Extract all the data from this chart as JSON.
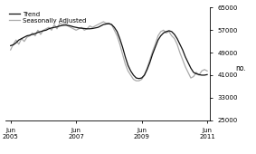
{
  "title": "",
  "ylabel": "no.",
  "ylim": [
    25000,
    65000
  ],
  "yticks": [
    25000,
    33000,
    41000,
    49000,
    57000,
    65000
  ],
  "xlim_start": 2005.25,
  "xlim_end": 2011.5,
  "xtick_positions": [
    2005.417,
    2007.417,
    2009.417,
    2011.417
  ],
  "xtick_labels": [
    "Jun\n2005",
    "Jun\n2007",
    "Jun\n2009",
    "Jun\n2011"
  ],
  "legend_entries": [
    "Trend",
    "Seasonally Adjusted"
  ],
  "trend_color": "#111111",
  "sa_color": "#aaaaaa",
  "trend_linewidth": 0.9,
  "sa_linewidth": 0.9,
  "background_color": "#ffffff",
  "trend_x": [
    2005.417,
    2005.5,
    2005.583,
    2005.667,
    2005.75,
    2005.833,
    2005.917,
    2006.0,
    2006.083,
    2006.167,
    2006.25,
    2006.333,
    2006.417,
    2006.5,
    2006.583,
    2006.667,
    2006.75,
    2006.833,
    2006.917,
    2007.0,
    2007.083,
    2007.167,
    2007.25,
    2007.333,
    2007.417,
    2007.5,
    2007.583,
    2007.667,
    2007.75,
    2007.833,
    2007.917,
    2008.0,
    2008.083,
    2008.167,
    2008.25,
    2008.333,
    2008.417,
    2008.5,
    2008.583,
    2008.667,
    2008.75,
    2008.833,
    2008.917,
    2009.0,
    2009.083,
    2009.167,
    2009.25,
    2009.333,
    2009.417,
    2009.5,
    2009.583,
    2009.667,
    2009.75,
    2009.833,
    2009.917,
    2010.0,
    2010.083,
    2010.167,
    2010.25,
    2010.333,
    2010.417,
    2010.5,
    2010.583,
    2010.667,
    2010.75,
    2010.833,
    2010.917,
    2011.0,
    2011.083,
    2011.167,
    2011.25,
    2011.333,
    2011.417
  ],
  "trend_y": [
    51500,
    51800,
    52500,
    53500,
    54000,
    54500,
    55000,
    55200,
    55500,
    55800,
    56200,
    56500,
    56800,
    57000,
    57500,
    57800,
    58000,
    58200,
    58500,
    58700,
    58800,
    58700,
    58500,
    58200,
    58000,
    57800,
    57700,
    57600,
    57500,
    57500,
    57600,
    57800,
    58000,
    58500,
    59000,
    59200,
    59300,
    59000,
    58000,
    56500,
    54000,
    51000,
    47500,
    44500,
    42500,
    41000,
    40000,
    39800,
    40000,
    41000,
    43000,
    45500,
    48500,
    51000,
    53500,
    55000,
    56000,
    56500,
    56800,
    56500,
    55500,
    54000,
    52000,
    50000,
    47500,
    45500,
    43500,
    42000,
    41500,
    41200,
    41000,
    41000,
    41200
  ],
  "sa_x": [
    2005.417,
    2005.5,
    2005.583,
    2005.667,
    2005.75,
    2005.833,
    2005.917,
    2006.0,
    2006.083,
    2006.167,
    2006.25,
    2006.333,
    2006.417,
    2006.5,
    2006.583,
    2006.667,
    2006.75,
    2006.833,
    2006.917,
    2007.0,
    2007.083,
    2007.167,
    2007.25,
    2007.333,
    2007.417,
    2007.5,
    2007.583,
    2007.667,
    2007.75,
    2007.833,
    2007.917,
    2008.0,
    2008.083,
    2008.167,
    2008.25,
    2008.333,
    2008.417,
    2008.5,
    2008.583,
    2008.667,
    2008.75,
    2008.833,
    2008.917,
    2009.0,
    2009.083,
    2009.167,
    2009.25,
    2009.333,
    2009.417,
    2009.5,
    2009.583,
    2009.667,
    2009.75,
    2009.833,
    2009.917,
    2010.0,
    2010.083,
    2010.167,
    2010.25,
    2010.333,
    2010.417,
    2010.5,
    2010.583,
    2010.667,
    2010.75,
    2010.833,
    2010.917,
    2011.0,
    2011.083,
    2011.167,
    2011.25,
    2011.333,
    2011.417
  ],
  "sa_y": [
    50000,
    52000,
    53500,
    52000,
    54000,
    53000,
    54500,
    55000,
    56000,
    55000,
    57000,
    55500,
    57000,
    57500,
    58000,
    57000,
    59000,
    57500,
    59500,
    59000,
    59500,
    58500,
    58000,
    57500,
    57000,
    57500,
    58000,
    57000,
    57500,
    58500,
    58000,
    58500,
    59000,
    59500,
    60000,
    59500,
    59500,
    59000,
    57000,
    55000,
    52000,
    48500,
    45000,
    42500,
    41000,
    39500,
    39000,
    39000,
    39500,
    41000,
    43500,
    46500,
    49500,
    52000,
    55000,
    56500,
    57000,
    56000,
    56500,
    55000,
    54000,
    52000,
    49000,
    46500,
    44000,
    42000,
    40000,
    40500,
    42000,
    41000,
    42500,
    43000,
    42500
  ],
  "figsize": [
    2.83,
    1.7
  ],
  "dpi": 100
}
